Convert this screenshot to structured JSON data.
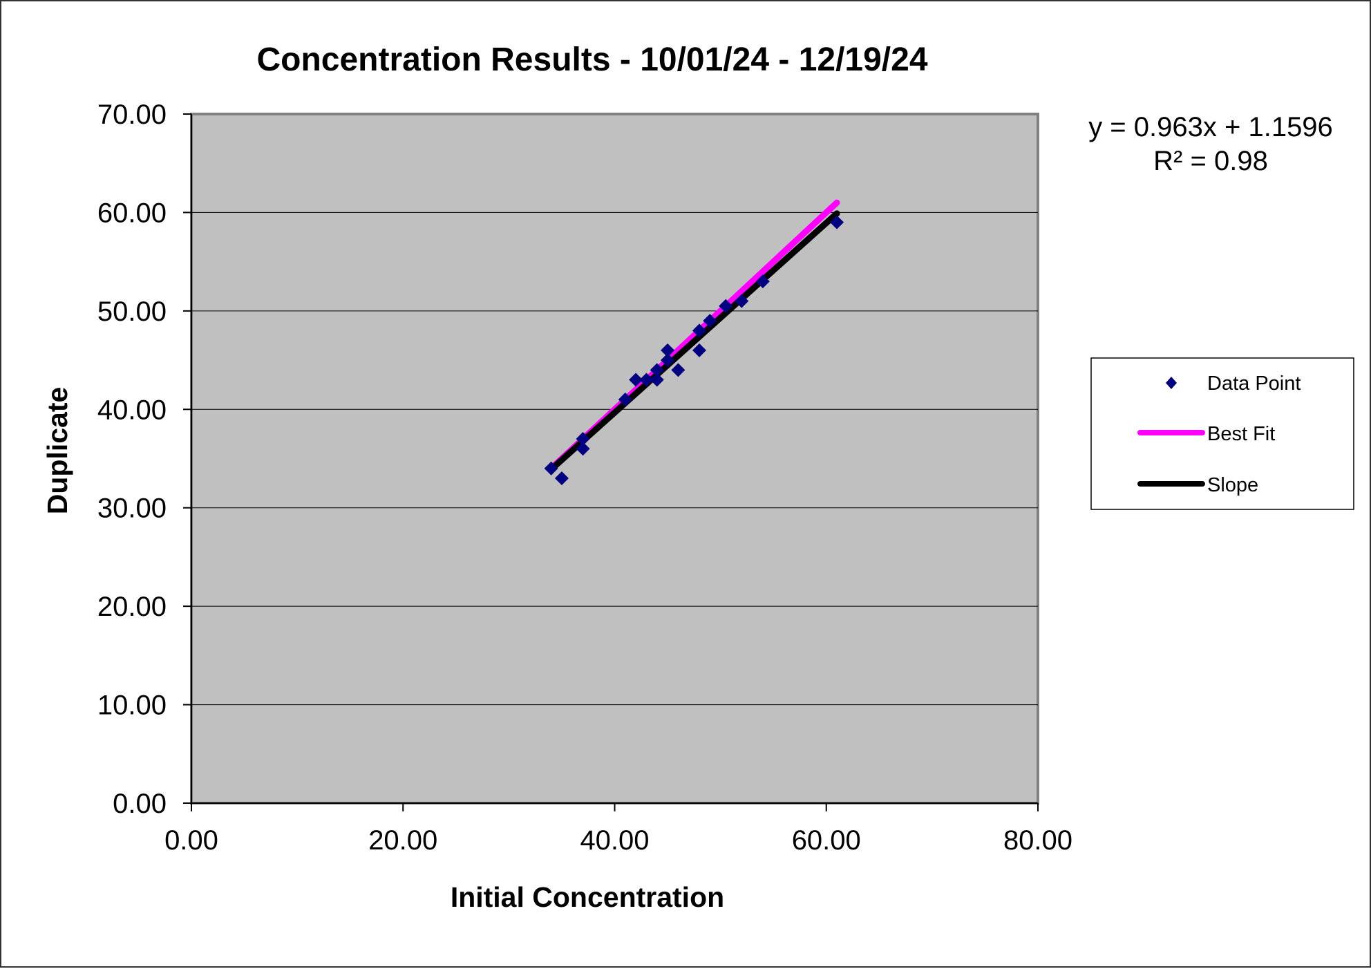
{
  "chart_data": {
    "type": "scatter",
    "title": "Concentration Results - 10/01/24 - 12/19/24",
    "xlabel": "Initial Concentration",
    "ylabel": "Duplicate",
    "xlim": [
      0,
      80
    ],
    "ylim": [
      0,
      70
    ],
    "x_ticks": [
      "0.00",
      "20.00",
      "40.00",
      "60.00",
      "80.00"
    ],
    "y_ticks": [
      "0.00",
      "10.00",
      "20.00",
      "30.00",
      "40.00",
      "50.00",
      "60.00",
      "70.00"
    ],
    "x_tick_values": [
      0,
      20,
      40,
      60,
      80
    ],
    "y_tick_values": [
      0,
      10,
      20,
      30,
      40,
      50,
      60,
      70
    ],
    "grid": true,
    "plot_background": "#c0c0c0",
    "legend_position": "right",
    "annotations": {
      "equation": "y = 0.963x + 1.1596",
      "r_squared": "R² = 0.98"
    },
    "series": [
      {
        "name": "Data Point",
        "kind": "scatter",
        "color": "#000080",
        "marker": "diamond",
        "points": [
          {
            "x": 34,
            "y": 34
          },
          {
            "x": 35,
            "y": 33
          },
          {
            "x": 37,
            "y": 37
          },
          {
            "x": 37,
            "y": 36
          },
          {
            "x": 41,
            "y": 41
          },
          {
            "x": 42,
            "y": 43
          },
          {
            "x": 43,
            "y": 43
          },
          {
            "x": 44,
            "y": 44
          },
          {
            "x": 44,
            "y": 43
          },
          {
            "x": 45,
            "y": 45
          },
          {
            "x": 45,
            "y": 46
          },
          {
            "x": 46,
            "y": 44
          },
          {
            "x": 48,
            "y": 48
          },
          {
            "x": 48,
            "y": 46
          },
          {
            "x": 49,
            "y": 49
          },
          {
            "x": 50.5,
            "y": 50.5
          },
          {
            "x": 52,
            "y": 51
          },
          {
            "x": 54,
            "y": 53
          },
          {
            "x": 61,
            "y": 59
          }
        ]
      },
      {
        "name": "Best Fit",
        "kind": "line",
        "color": "#ff00ff",
        "points": [
          {
            "x": 34,
            "y": 34
          },
          {
            "x": 61,
            "y": 61
          }
        ]
      },
      {
        "name": "Slope",
        "kind": "line",
        "color": "#000000",
        "points": [
          {
            "x": 34,
            "y": 33.9
          },
          {
            "x": 61,
            "y": 59.9
          }
        ]
      }
    ]
  }
}
